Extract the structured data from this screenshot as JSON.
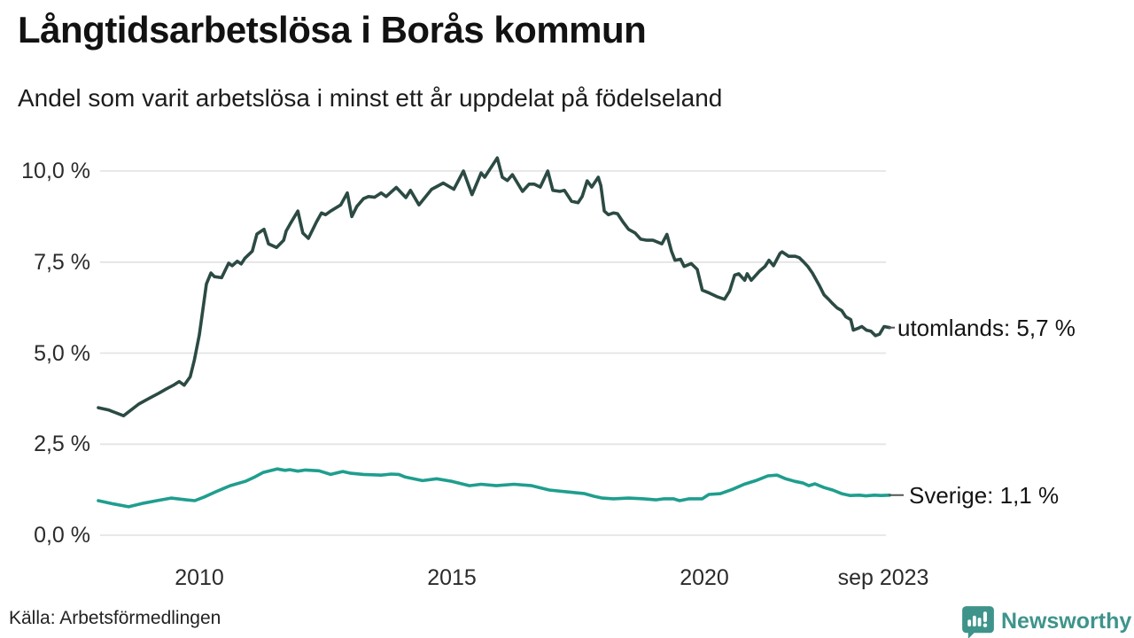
{
  "header": {
    "title": "Långtidsarbetslösa i Borås kommun",
    "subtitle": "Andel som varit arbetslösa i minst ett år uppdelat på födelseland"
  },
  "footer": {
    "source": "Källa: Arbetsförmedlingen",
    "brand": "Newsworthy",
    "brand_color": "#3e948b"
  },
  "chart_data": {
    "type": "line",
    "title": "Långtidsarbetslösa i Borås kommun",
    "subtitle": "Andel som varit arbetslösa i minst ett år uppdelat på födelseland",
    "source": "Källa: Arbetsförmedlingen",
    "grid": true,
    "legend_position": "end-of-line-labels-right",
    "xlim": [
      2008,
      2023.75
    ],
    "ylim": [
      0,
      10.6
    ],
    "yticks": [
      {
        "label": "10,0 %",
        "value": 10
      },
      {
        "label": "7,5 %",
        "value": 7.5
      },
      {
        "label": "5,0 %",
        "value": 5
      },
      {
        "label": "2,5 %",
        "value": 2.5
      },
      {
        "label": "0,0 %",
        "value": 0
      }
    ],
    "xticks": [
      {
        "label": "2010",
        "value": 2010
      },
      {
        "label": "2015",
        "value": 2015
      },
      {
        "label": "2020",
        "value": 2020
      },
      {
        "label": "sep 2023",
        "value": 2023.67
      }
    ],
    "gridline_color": "#e4e4e4",
    "series": [
      {
        "name": "utomlands",
        "end_label": "utomlands: 5,7 %",
        "last_value": 5.7,
        "color": "#2b4a43",
        "points": [
          [
            2008.0,
            3.5
          ],
          [
            2008.2,
            3.44
          ],
          [
            2008.5,
            3.28
          ],
          [
            2008.8,
            3.6
          ],
          [
            2008.98,
            3.74
          ],
          [
            2009.2,
            3.9
          ],
          [
            2009.35,
            4.02
          ],
          [
            2009.5,
            4.13
          ],
          [
            2009.6,
            4.22
          ],
          [
            2009.7,
            4.12
          ],
          [
            2009.82,
            4.35
          ],
          [
            2009.9,
            4.8
          ],
          [
            2010.0,
            5.5
          ],
          [
            2010.07,
            6.2
          ],
          [
            2010.14,
            6.9
          ],
          [
            2010.23,
            7.2
          ],
          [
            2010.3,
            7.1
          ],
          [
            2010.44,
            7.07
          ],
          [
            2010.58,
            7.47
          ],
          [
            2010.65,
            7.4
          ],
          [
            2010.75,
            7.52
          ],
          [
            2010.83,
            7.45
          ],
          [
            2010.9,
            7.6
          ],
          [
            2011.05,
            7.8
          ],
          [
            2011.14,
            8.27
          ],
          [
            2011.28,
            8.4
          ],
          [
            2011.37,
            8.0
          ],
          [
            2011.53,
            7.9
          ],
          [
            2011.67,
            8.1
          ],
          [
            2011.72,
            8.35
          ],
          [
            2011.8,
            8.55
          ],
          [
            2011.95,
            8.9
          ],
          [
            2012.05,
            8.3
          ],
          [
            2012.16,
            8.15
          ],
          [
            2012.32,
            8.6
          ],
          [
            2012.42,
            8.85
          ],
          [
            2012.5,
            8.8
          ],
          [
            2012.6,
            8.9
          ],
          [
            2012.72,
            9.0
          ],
          [
            2012.8,
            9.07
          ],
          [
            2012.93,
            9.4
          ],
          [
            2013.02,
            8.75
          ],
          [
            2013.12,
            9.03
          ],
          [
            2013.25,
            9.24
          ],
          [
            2013.35,
            9.3
          ],
          [
            2013.47,
            9.28
          ],
          [
            2013.6,
            9.4
          ],
          [
            2013.7,
            9.3
          ],
          [
            2013.9,
            9.55
          ],
          [
            2014.09,
            9.27
          ],
          [
            2014.18,
            9.47
          ],
          [
            2014.35,
            9.07
          ],
          [
            2014.6,
            9.5
          ],
          [
            2014.83,
            9.67
          ],
          [
            2015.04,
            9.5
          ],
          [
            2015.23,
            10.0
          ],
          [
            2015.4,
            9.35
          ],
          [
            2015.58,
            9.95
          ],
          [
            2015.65,
            9.83
          ],
          [
            2015.9,
            10.36
          ],
          [
            2016.0,
            9.83
          ],
          [
            2016.1,
            9.74
          ],
          [
            2016.2,
            9.9
          ],
          [
            2016.4,
            9.44
          ],
          [
            2016.53,
            9.64
          ],
          [
            2016.63,
            9.64
          ],
          [
            2016.75,
            9.56
          ],
          [
            2016.9,
            10.0
          ],
          [
            2017.0,
            9.47
          ],
          [
            2017.14,
            9.44
          ],
          [
            2017.23,
            9.47
          ],
          [
            2017.37,
            9.17
          ],
          [
            2017.5,
            9.13
          ],
          [
            2017.58,
            9.3
          ],
          [
            2017.68,
            9.73
          ],
          [
            2017.77,
            9.56
          ],
          [
            2017.9,
            9.83
          ],
          [
            2017.95,
            9.6
          ],
          [
            2018.02,
            8.9
          ],
          [
            2018.1,
            8.8
          ],
          [
            2018.2,
            8.85
          ],
          [
            2018.28,
            8.83
          ],
          [
            2018.39,
            8.6
          ],
          [
            2018.5,
            8.4
          ],
          [
            2018.63,
            8.3
          ],
          [
            2018.74,
            8.13
          ],
          [
            2018.86,
            8.1
          ],
          [
            2018.98,
            8.1
          ],
          [
            2019.16,
            8.0
          ],
          [
            2019.26,
            8.26
          ],
          [
            2019.35,
            7.8
          ],
          [
            2019.42,
            7.55
          ],
          [
            2019.53,
            7.58
          ],
          [
            2019.6,
            7.38
          ],
          [
            2019.74,
            7.46
          ],
          [
            2019.86,
            7.3
          ],
          [
            2019.96,
            6.73
          ],
          [
            2020.1,
            6.65
          ],
          [
            2020.25,
            6.55
          ],
          [
            2020.4,
            6.48
          ],
          [
            2020.5,
            6.7
          ],
          [
            2020.6,
            7.14
          ],
          [
            2020.68,
            7.18
          ],
          [
            2020.8,
            7.0
          ],
          [
            2020.85,
            7.18
          ],
          [
            2020.93,
            7.0
          ],
          [
            2021.1,
            7.26
          ],
          [
            2021.2,
            7.38
          ],
          [
            2021.28,
            7.55
          ],
          [
            2021.37,
            7.4
          ],
          [
            2021.5,
            7.74
          ],
          [
            2021.54,
            7.78
          ],
          [
            2021.67,
            7.66
          ],
          [
            2021.8,
            7.66
          ],
          [
            2021.88,
            7.62
          ],
          [
            2021.97,
            7.5
          ],
          [
            2022.05,
            7.38
          ],
          [
            2022.14,
            7.2
          ],
          [
            2022.28,
            6.85
          ],
          [
            2022.37,
            6.6
          ],
          [
            2022.46,
            6.48
          ],
          [
            2022.54,
            6.36
          ],
          [
            2022.63,
            6.24
          ],
          [
            2022.72,
            6.17
          ],
          [
            2022.8,
            6.0
          ],
          [
            2022.9,
            5.92
          ],
          [
            2022.95,
            5.63
          ],
          [
            2023.04,
            5.68
          ],
          [
            2023.12,
            5.73
          ],
          [
            2023.21,
            5.63
          ],
          [
            2023.3,
            5.6
          ],
          [
            2023.39,
            5.48
          ],
          [
            2023.47,
            5.52
          ],
          [
            2023.56,
            5.73
          ],
          [
            2023.67,
            5.7
          ]
        ]
      },
      {
        "name": "Sverige",
        "end_label": "Sverige: 1,1 %",
        "last_value": 1.1,
        "color": "#1f9e8e",
        "points": [
          [
            2008.0,
            0.95
          ],
          [
            2008.3,
            0.86
          ],
          [
            2008.6,
            0.78
          ],
          [
            2008.9,
            0.88
          ],
          [
            2009.16,
            0.95
          ],
          [
            2009.44,
            1.02
          ],
          [
            2009.74,
            0.97
          ],
          [
            2009.91,
            0.95
          ],
          [
            2010.1,
            1.05
          ],
          [
            2010.32,
            1.19
          ],
          [
            2010.61,
            1.36
          ],
          [
            2010.91,
            1.48
          ],
          [
            2011.1,
            1.6
          ],
          [
            2011.26,
            1.72
          ],
          [
            2011.54,
            1.82
          ],
          [
            2011.7,
            1.78
          ],
          [
            2011.79,
            1.8
          ],
          [
            2011.95,
            1.76
          ],
          [
            2012.1,
            1.79
          ],
          [
            2012.37,
            1.77
          ],
          [
            2012.6,
            1.67
          ],
          [
            2012.84,
            1.75
          ],
          [
            2013.0,
            1.7
          ],
          [
            2013.25,
            1.67
          ],
          [
            2013.6,
            1.65
          ],
          [
            2013.8,
            1.68
          ],
          [
            2013.95,
            1.67
          ],
          [
            2014.07,
            1.6
          ],
          [
            2014.42,
            1.5
          ],
          [
            2014.7,
            1.55
          ],
          [
            2015.0,
            1.48
          ],
          [
            2015.35,
            1.36
          ],
          [
            2015.58,
            1.4
          ],
          [
            2015.88,
            1.36
          ],
          [
            2016.23,
            1.4
          ],
          [
            2016.58,
            1.36
          ],
          [
            2016.93,
            1.24
          ],
          [
            2017.28,
            1.19
          ],
          [
            2017.63,
            1.14
          ],
          [
            2017.81,
            1.07
          ],
          [
            2017.98,
            1.02
          ],
          [
            2018.2,
            1.0
          ],
          [
            2018.5,
            1.02
          ],
          [
            2018.8,
            1.0
          ],
          [
            2019.04,
            0.97
          ],
          [
            2019.2,
            1.0
          ],
          [
            2019.39,
            1.0
          ],
          [
            2019.51,
            0.95
          ],
          [
            2019.7,
            1.0
          ],
          [
            2019.96,
            1.0
          ],
          [
            2020.09,
            1.12
          ],
          [
            2020.32,
            1.14
          ],
          [
            2020.56,
            1.26
          ],
          [
            2020.79,
            1.4
          ],
          [
            2021.02,
            1.5
          ],
          [
            2021.26,
            1.63
          ],
          [
            2021.44,
            1.65
          ],
          [
            2021.61,
            1.55
          ],
          [
            2021.79,
            1.48
          ],
          [
            2021.96,
            1.43
          ],
          [
            2022.07,
            1.36
          ],
          [
            2022.19,
            1.41
          ],
          [
            2022.37,
            1.31
          ],
          [
            2022.54,
            1.24
          ],
          [
            2022.72,
            1.14
          ],
          [
            2022.89,
            1.09
          ],
          [
            2023.07,
            1.1
          ],
          [
            2023.2,
            1.08
          ],
          [
            2023.37,
            1.1
          ],
          [
            2023.5,
            1.09
          ],
          [
            2023.67,
            1.1
          ]
        ]
      }
    ]
  }
}
